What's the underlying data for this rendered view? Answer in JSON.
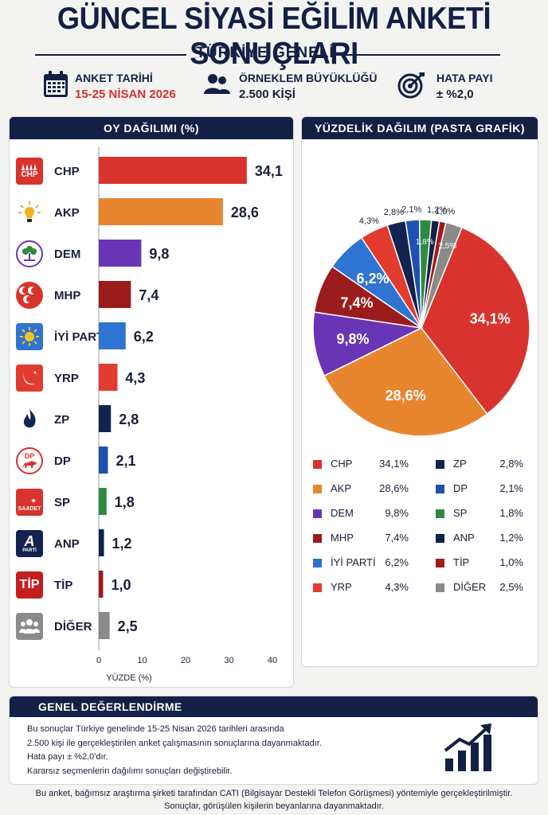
{
  "header": {
    "title": "GÜNCEL SİYASİ EĞİLİM ANKETİ SONUÇLARI",
    "subtitle": "TÜRKİYE GENELİ"
  },
  "meta": {
    "date_label": "ANKET TARİHİ",
    "date_value": "15-25 NİSAN 2026",
    "sample_label": "ÖRNEKLEM BÜYÜKLÜĞÜ",
    "sample_value": "2.500 KİŞİ",
    "error_label": "HATA PAYI",
    "error_value": "± %2,0"
  },
  "bar_panel": {
    "title": "OY DAĞILIMI (%)"
  },
  "pie_panel": {
    "title": "YÜZDELİK DAĞILIM (PASTA GRAFİK)"
  },
  "logos": {
    "chp": "CHP",
    "dp": "DP",
    "sp": "SAADET",
    "anp": "A",
    "anp_sub": "PARTİ",
    "tip": "TİP"
  },
  "colors": {
    "CHP": "#d8332c",
    "AKP": "#e8862f",
    "DEM": "#6a35b4",
    "MHP": "#9b1c1c",
    "IYI": "#2f74d0",
    "YRP": "#e23b30",
    "ZP": "#12234f",
    "DP": "#1f4fb0",
    "SP": "#2e8a42",
    "ANP": "#10214d",
    "TIP": "#a21a1a",
    "DIGER": "#8a8a8a",
    "brand": "#132045"
  },
  "chart_data": [
    {
      "type": "bar",
      "title": "OY DAĞILIMI (%)",
      "xlabel": "YÜZDE (%)",
      "ylabel": "",
      "xlim": [
        0,
        40
      ],
      "xticks": [
        0,
        10,
        20,
        30,
        40
      ],
      "categories": [
        "CHP",
        "AKP",
        "DEM",
        "MHP",
        "İYİ PARTİ",
        "YRP",
        "ZP",
        "DP",
        "SP",
        "ANP",
        "TİP",
        "DİĞER"
      ],
      "values": [
        34.1,
        28.6,
        9.8,
        7.4,
        6.2,
        4.3,
        2.8,
        2.1,
        1.8,
        1.2,
        1.0,
        2.5
      ],
      "value_labels": [
        "34,1",
        "28,6",
        "9,8",
        "7,4",
        "6,2",
        "4,3",
        "2,8",
        "2,1",
        "1,8",
        "1,2",
        "1,0",
        "2,5"
      ],
      "colors": [
        "#d8332c",
        "#e8862f",
        "#6a35b4",
        "#9b1c1c",
        "#2f74d0",
        "#e23b30",
        "#12234f",
        "#1f4fb0",
        "#2e8a42",
        "#10214d",
        "#a21a1a",
        "#8a8a8a"
      ]
    },
    {
      "type": "pie",
      "title": "YÜZDELİK DAĞILIM (PASTA GRAFİK)",
      "categories": [
        "CHP",
        "AKP",
        "DEM",
        "MHP",
        "İYİ PARTİ",
        "YRP",
        "ZP",
        "DP",
        "SP",
        "ANP",
        "TİP",
        "DİĞER"
      ],
      "values": [
        34.1,
        28.6,
        9.8,
        7.4,
        6.2,
        4.3,
        2.8,
        2.1,
        1.8,
        1.2,
        1.0,
        2.5
      ],
      "value_labels": [
        "34,1%",
        "28,6%",
        "9,8%",
        "7,4%",
        "6,2%",
        "4,3%",
        "2,8%",
        "2,1%",
        "1,8%",
        "1,2%",
        "1,0%",
        "2,5%"
      ],
      "colors": [
        "#d8332c",
        "#e8862f",
        "#6a35b4",
        "#9b1c1c",
        "#2f74d0",
        "#e23b30",
        "#12234f",
        "#1f4fb0",
        "#2e8a42",
        "#10214d",
        "#a21a1a",
        "#8a8a8a"
      ]
    }
  ],
  "summary": {
    "title": "GENEL DEĞERLENDİRME",
    "lines": [
      "Bu sonuçlar Türkiye genelinde 15-25 Nisan 2026 tarihleri arasında",
      "2.500 kişi ile gerçekleştirilen anket çalışmasının sonuçlarına dayanmaktadır.",
      "Hata payı ± %2,0'dır.",
      "Kararsız seçmenlerin dağılımı sonuçları değiştirebilir."
    ]
  },
  "footer": {
    "line1": "Bu anket, bağımsız araştırma şirketi tarafından CATI (Bilgisayar Destekli Telefon Görüşmesi) yöntemiyle gerçekleştirilmiştir.",
    "line2": "Sonuçlar, görüşülen kişilerin beyanlarına dayanmaktadır."
  }
}
